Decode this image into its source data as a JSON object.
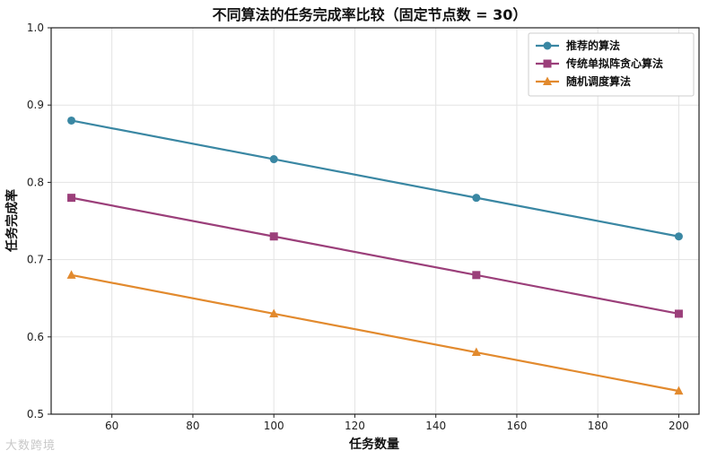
{
  "chart_data": {
    "type": "line",
    "title": "不同算法的任务完成率比较（固定节点数 = 30）",
    "xlabel": "任务数量",
    "ylabel": "任务完成率",
    "xlim": [
      45,
      205
    ],
    "ylim": [
      0.5,
      1.0
    ],
    "x_ticks": [
      60,
      80,
      100,
      120,
      140,
      160,
      180,
      200
    ],
    "y_ticks": [
      0.5,
      0.6,
      0.7,
      0.8,
      0.9,
      1.0
    ],
    "y_tick_labels": [
      "0.5",
      "0.6",
      "0.7",
      "0.8",
      "0.9",
      "1.0"
    ],
    "grid": true,
    "legend_position": "top-right",
    "x": [
      50,
      100,
      150,
      200
    ],
    "series": [
      {
        "name": "推荐的算法",
        "values": [
          0.88,
          0.83,
          0.78,
          0.73
        ],
        "color": "#3a87a3",
        "marker": "circle"
      },
      {
        "name": "传统单拟阵贪心算法",
        "values": [
          0.78,
          0.73,
          0.68,
          0.63
        ],
        "color": "#9b3f7a",
        "marker": "square"
      },
      {
        "name": "随机调度算法",
        "values": [
          0.68,
          0.63,
          0.58,
          0.53
        ],
        "color": "#e28a2e",
        "marker": "triangle"
      }
    ]
  },
  "watermark": "大数跨境"
}
